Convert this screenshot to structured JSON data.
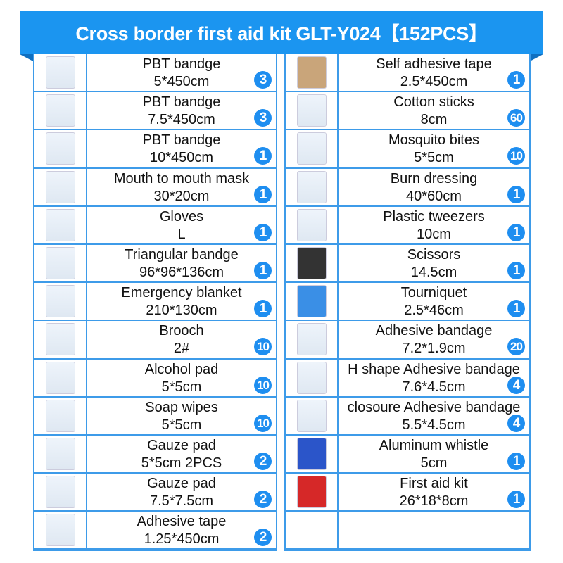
{
  "title": "Cross border first aid kit GLT-Y024【152PCS】",
  "colors": {
    "header": "#1b95f0",
    "badge": "#1e8ef0",
    "grid": "#3d9be9"
  },
  "left": [
    {
      "name": "PBT bandge",
      "size": "5*450cm",
      "qty": "3"
    },
    {
      "name": "PBT bandge",
      "size": "7.5*450cm",
      "qty": "3"
    },
    {
      "name": "PBT bandge",
      "size": "10*450cm",
      "qty": "1"
    },
    {
      "name": "Mouth to mouth mask",
      "size": "30*20cm",
      "qty": "1"
    },
    {
      "name": "Gloves",
      "size": "L",
      "qty": "1"
    },
    {
      "name": "Triangular bandge",
      "size": "96*96*136cm",
      "qty": "1"
    },
    {
      "name": "Emergency  blanket",
      "size": "210*130cm",
      "qty": "1"
    },
    {
      "name": "Brooch",
      "size": "2#",
      "qty": "10"
    },
    {
      "name": "Alcohol pad",
      "size": "5*5cm",
      "qty": "10"
    },
    {
      "name": "Soap wipes",
      "size": "5*5cm",
      "qty": "10"
    },
    {
      "name": "Gauze pad",
      "size": "5*5cm 2PCS",
      "qty": "2"
    },
    {
      "name": "Gauze pad",
      "size": "7.5*7.5cm",
      "qty": "2"
    },
    {
      "name": "Adhesive tape",
      "size": "1.25*450cm",
      "qty": "2"
    }
  ],
  "right": [
    {
      "name": "Self adhesive tape",
      "size": "2.5*450cm",
      "qty": "1"
    },
    {
      "name": "Cotton sticks",
      "size": "8cm",
      "qty": "60"
    },
    {
      "name": "Mosquito bites",
      "size": "5*5cm",
      "qty": "10"
    },
    {
      "name": "Burn dressing",
      "size": "40*60cm",
      "qty": "1"
    },
    {
      "name": "Plastic tweezers",
      "size": "10cm",
      "qty": "1"
    },
    {
      "name": "Scissors",
      "size": "14.5cm",
      "qty": "1"
    },
    {
      "name": "Tourniquet",
      "size": "2.5*46cm",
      "qty": "1"
    },
    {
      "name": "Adhesive bandage",
      "size": "7.2*1.9cm",
      "qty": "20"
    },
    {
      "name": "H shape Adhesive bandage",
      "size": "7.6*4.5cm",
      "qty": "4"
    },
    {
      "name": "closoure Adhesive bandage",
      "size": "5.5*4.5cm",
      "qty": "4"
    },
    {
      "name": "Aluminum whistle",
      "size": "5cm",
      "qty": "1"
    },
    {
      "name": "First aid kit",
      "size": "26*18*8cm",
      "qty": "1"
    }
  ]
}
